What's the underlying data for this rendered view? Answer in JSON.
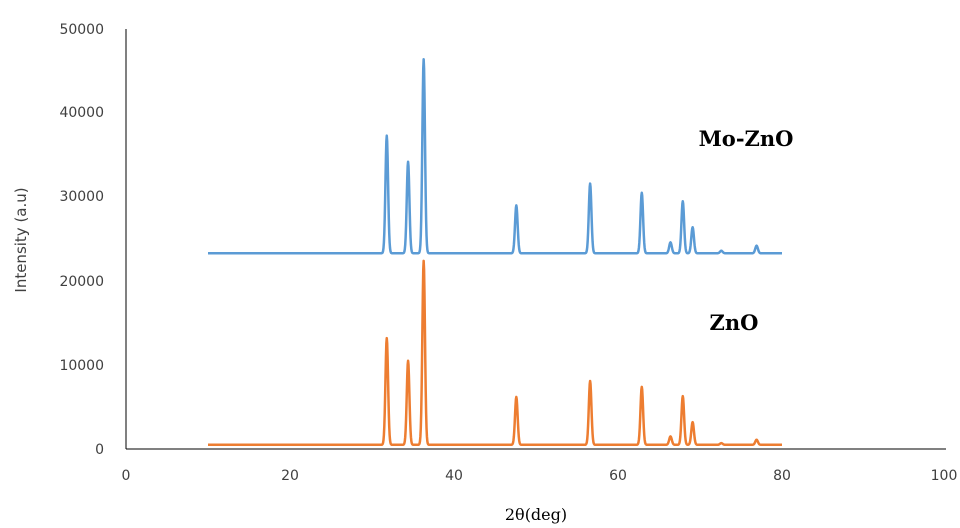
{
  "chart_data": {
    "type": "line",
    "title": "",
    "xlabel": "2θ(deg)",
    "ylabel": "Intensity (a.u)",
    "xlim": [
      0,
      100
    ],
    "ylim": [
      0,
      50000
    ],
    "xticks": [
      "0",
      "20",
      "40",
      "60",
      "80",
      "100"
    ],
    "yticks": [
      "0",
      "10000",
      "20000",
      "30000",
      "40000",
      "50000"
    ],
    "grid": false,
    "x_range": [
      10,
      80
    ],
    "series": [
      {
        "name": "Mo-ZnO",
        "color": "#5b9bd5",
        "baseline": 23300,
        "peaks": [
          {
            "x": 31.8,
            "y": 37300
          },
          {
            "x": 34.4,
            "y": 34200
          },
          {
            "x": 36.3,
            "y": 46400
          },
          {
            "x": 47.6,
            "y": 29000
          },
          {
            "x": 56.6,
            "y": 31600
          },
          {
            "x": 62.9,
            "y": 30500
          },
          {
            "x": 66.4,
            "y": 24600
          },
          {
            "x": 67.9,
            "y": 29500
          },
          {
            "x": 69.1,
            "y": 26400
          },
          {
            "x": 72.6,
            "y": 23600
          },
          {
            "x": 76.9,
            "y": 24200
          }
        ]
      },
      {
        "name": "ZnO",
        "color": "#ed7d31",
        "baseline": 500,
        "peaks": [
          {
            "x": 31.8,
            "y": 13200
          },
          {
            "x": 34.4,
            "y": 10500
          },
          {
            "x": 36.3,
            "y": 22400
          },
          {
            "x": 47.6,
            "y": 6200
          },
          {
            "x": 56.6,
            "y": 8100
          },
          {
            "x": 62.9,
            "y": 7400
          },
          {
            "x": 66.4,
            "y": 1500
          },
          {
            "x": 67.9,
            "y": 6300
          },
          {
            "x": 69.1,
            "y": 3200
          },
          {
            "x": 72.6,
            "y": 700
          },
          {
            "x": 76.9,
            "y": 1100
          }
        ]
      }
    ]
  }
}
